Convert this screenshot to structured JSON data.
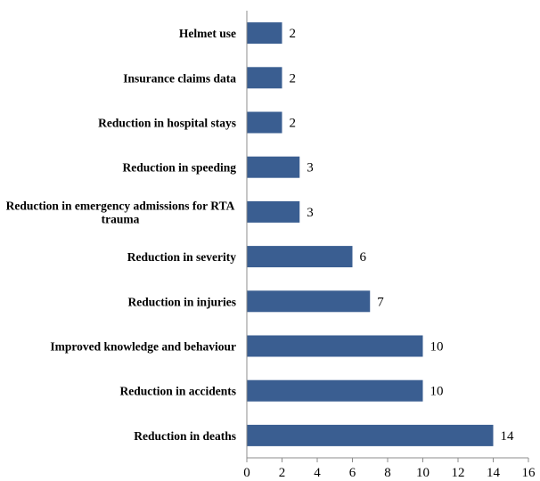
{
  "chart_data": {
    "type": "bar",
    "orientation": "horizontal",
    "title": "",
    "xlabel": "",
    "ylabel": "",
    "categories": [
      "Helmet use",
      "Insurance claims data",
      "Reduction in hospital stays",
      "Reduction in speeding",
      [
        "Reduction in emergency admissions for RTA",
        "trauma"
      ],
      "Reduction in severity",
      "Reduction in injuries",
      "Improved knowledge and behaviour",
      "Reduction in accidents",
      "Reduction in deaths"
    ],
    "values": [
      2,
      2,
      2,
      3,
      3,
      6,
      7,
      10,
      10,
      14
    ],
    "xlim": [
      0,
      16
    ],
    "xticks": [
      0,
      2,
      4,
      6,
      8,
      10,
      12,
      14,
      16
    ],
    "grid": false,
    "legend": "none",
    "colors": {
      "bar": "#3a5e91"
    }
  }
}
